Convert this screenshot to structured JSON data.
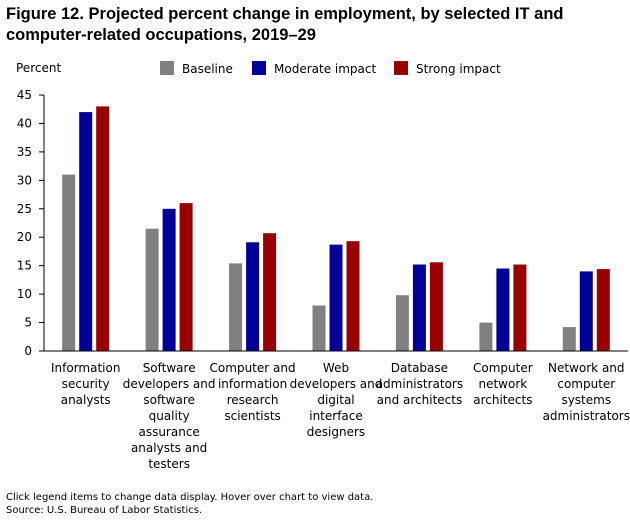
{
  "title": "Figure 12. Projected percent change in employment, by selected IT and computer-related occupations, 2019–29",
  "footnotes": {
    "note": "Click legend items to change data display. Hover over chart to view data.",
    "source": "Source: U.S. Bureau of Labor Statistics."
  },
  "colors": {
    "Baseline": "#808080",
    "Moderate impact": "#000099",
    "Strong impact": "#990000"
  },
  "chart_data": {
    "type": "bar",
    "title": "Figure 12. Projected percent change in employment, by selected IT and computer-related occupations, 2019–29",
    "xlabel": "",
    "ylabel": "Percent",
    "ylim": [
      0,
      45
    ],
    "yticks": [
      0,
      5,
      10,
      15,
      20,
      25,
      30,
      35,
      40,
      45
    ],
    "grid": false,
    "legend": "top",
    "categories": [
      [
        "Information",
        "security",
        "analysts"
      ],
      [
        "Software",
        "developers and",
        "software",
        "quality",
        "assurance",
        "analysts and",
        "testers"
      ],
      [
        "Computer and",
        "information",
        "research",
        "scientists"
      ],
      [
        "Web",
        "developers and",
        "digital",
        "interface",
        "designers"
      ],
      [
        "Database",
        "administrators",
        "and architects"
      ],
      [
        "Computer",
        "network",
        "architects"
      ],
      [
        "Network and",
        "computer",
        "systems",
        "administrators"
      ]
    ],
    "series": [
      {
        "name": "Baseline",
        "values": [
          31.0,
          21.5,
          15.4,
          8.0,
          9.8,
          5.0,
          4.2
        ]
      },
      {
        "name": "Moderate impact",
        "values": [
          42.0,
          25.0,
          19.1,
          18.7,
          15.2,
          14.5,
          14.0
        ]
      },
      {
        "name": "Strong impact",
        "values": [
          43.0,
          26.0,
          20.7,
          19.3,
          15.6,
          15.2,
          14.4
        ]
      }
    ]
  }
}
